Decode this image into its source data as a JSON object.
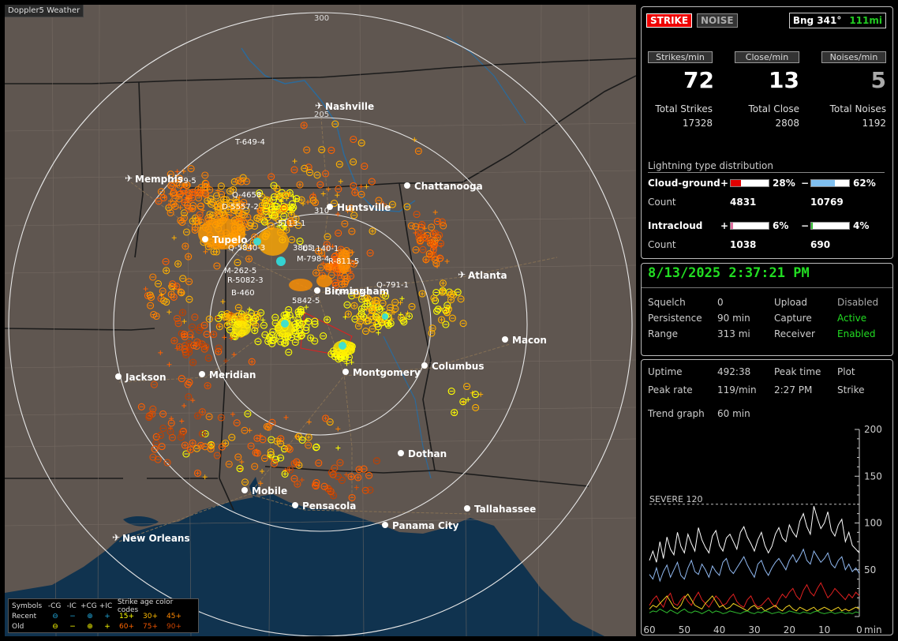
{
  "app": {
    "title": "Doppler5 Weather"
  },
  "map": {
    "range_labels": [
      "300",
      "205"
    ],
    "cities": [
      {
        "name": "Nashville"
      },
      {
        "name": "Memphis"
      },
      {
        "name": "Chattanooga"
      },
      {
        "name": "Huntsville"
      },
      {
        "name": "Tupelo"
      },
      {
        "name": "Atlanta"
      },
      {
        "name": "Birmingham"
      },
      {
        "name": "Macon"
      },
      {
        "name": "Jackson"
      },
      {
        "name": "Meridian"
      },
      {
        "name": "Montgomery"
      },
      {
        "name": "Columbus"
      },
      {
        "name": "Dothan"
      },
      {
        "name": "Mobile"
      },
      {
        "name": "Pensacola"
      },
      {
        "name": "Tallahassee"
      },
      {
        "name": "Panama City"
      },
      {
        "name": "New Orleans"
      }
    ],
    "storm_labels": [
      "T-649-4",
      "Q-4658",
      "D-5557-2",
      "79-5",
      "Q-5840-3",
      "M-262-5",
      "R-5082-3",
      "B-460",
      "M-798-4",
      "R-811-5",
      "U-1140-1",
      "Q-4305-1",
      "Q-791-1",
      "5842-5",
      "3865",
      "5113-1",
      "310"
    ]
  },
  "legend": {
    "header": [
      "Symbols",
      "-CG",
      "-IC",
      "+CG",
      "+IC",
      "Strike age color codes"
    ],
    "recent_label": "Recent",
    "old_label": "Old",
    "recent_ages": [
      "15+",
      "30+",
      "45+"
    ],
    "old_ages": [
      "60+",
      "75+",
      "90+"
    ],
    "age_colors": [
      "#ffff00",
      "#ffb000",
      "#ff8000",
      "#ff6000",
      "#e05000",
      "#c04000"
    ]
  },
  "status": {
    "strike_toggle": "STRIKE",
    "noise_toggle": "NOISE",
    "bearing": "Bng 341°",
    "distance": "111mi",
    "strikes_per_min_label": "Strikes/min",
    "close_per_min_label": "Close/min",
    "noises_per_min_label": "Noises/min",
    "strikes_per_min": "72",
    "close_per_min": "13",
    "noises_per_min": "5",
    "total_strikes_label": "Total Strikes",
    "total_close_label": "Total Close",
    "total_noises_label": "Total Noises",
    "total_strikes": "17328",
    "total_close": "2808",
    "total_noises": "1192"
  },
  "distribution": {
    "title": "Lightning type distribution",
    "cloud_ground": {
      "label": "Cloud-ground",
      "pos_pct": 28,
      "neg_pct": 62,
      "pos_pct_text": "28%",
      "neg_pct_text": "62%",
      "pos_count": "4831",
      "neg_count": "10769",
      "pos_color": "#e00000",
      "neg_color": "#80c0f0"
    },
    "intracloud": {
      "label": "Intracloud",
      "pos_pct": 6,
      "neg_pct": 4,
      "pos_pct_text": "6%",
      "neg_pct_text": "4%",
      "pos_count": "1038",
      "neg_count": "690",
      "pos_color": "#e070a0",
      "neg_color": "#30c030"
    },
    "count_label": "Count",
    "plus": "+",
    "minus": "−"
  },
  "settings": {
    "datetime": "8/13/2025 2:37:21 PM",
    "squelch_label": "Squelch",
    "squelch": "0",
    "persistence_label": "Persistence",
    "persistence": "90 min",
    "range_label": "Range",
    "range": "313 mi",
    "upload_label": "Upload",
    "upload": "Disabled",
    "capture_label": "Capture",
    "capture": "Active",
    "receiver_label": "Receiver",
    "receiver": "Enabled"
  },
  "stats": {
    "uptime_label": "Uptime",
    "uptime": "492:38",
    "peak_time_label": "Peak time",
    "peak_time": "2:27 PM",
    "plot_label": "Plot",
    "plot": "Strike",
    "peak_rate_label": "Peak rate",
    "peak_rate": "119/min",
    "trend_label": "Trend graph",
    "trend_window": "60 min"
  },
  "chart_data": {
    "type": "line",
    "x": [
      60,
      59,
      58,
      57,
      56,
      55,
      54,
      53,
      52,
      51,
      50,
      49,
      48,
      47,
      46,
      45,
      44,
      43,
      42,
      41,
      40,
      39,
      38,
      37,
      36,
      35,
      34,
      33,
      32,
      31,
      30,
      29,
      28,
      27,
      26,
      25,
      24,
      23,
      22,
      21,
      20,
      19,
      18,
      17,
      16,
      15,
      14,
      13,
      12,
      11,
      10,
      9,
      8,
      7,
      6,
      5,
      4,
      3,
      2,
      1,
      0
    ],
    "xlabel": "min",
    "xticks": [
      "60",
      "50",
      "40",
      "30",
      "20",
      "10",
      "0"
    ],
    "yticks": [
      "50",
      "100",
      "150",
      "200"
    ],
    "ylim": [
      0,
      200
    ],
    "xlim": [
      60,
      0
    ],
    "threshold": {
      "label": "SEVERE 120",
      "value": 120
    },
    "series": [
      {
        "color": "#ffffff",
        "values": [
          60,
          70,
          58,
          80,
          62,
          85,
          72,
          66,
          90,
          75,
          68,
          88,
          78,
          70,
          95,
          82,
          74,
          68,
          86,
          92,
          76,
          70,
          84,
          88,
          80,
          72,
          90,
          96,
          85,
          78,
          70,
          82,
          90,
          76,
          68,
          75,
          88,
          95,
          84,
          80,
          98,
          90,
          85,
          102,
          110,
          96,
          88,
          118,
          105,
          94,
          100,
          112,
          92,
          86,
          98,
          104,
          80,
          90,
          76,
          72,
          68
        ]
      },
      {
        "color": "#90b8f0",
        "values": [
          45,
          40,
          52,
          38,
          48,
          55,
          42,
          50,
          58,
          44,
          40,
          52,
          60,
          48,
          45,
          56,
          50,
          42,
          54,
          48,
          44,
          58,
          62,
          50,
          46,
          52,
          58,
          64,
          55,
          48,
          42,
          56,
          60,
          50,
          44,
          52,
          58,
          62,
          56,
          50,
          60,
          66,
          58,
          64,
          72,
          60,
          56,
          70,
          64,
          58,
          62,
          68,
          56,
          52,
          60,
          64,
          50,
          56,
          48,
          52,
          46
        ]
      },
      {
        "color": "#e02020",
        "values": [
          12,
          18,
          22,
          15,
          10,
          20,
          25,
          14,
          12,
          18,
          22,
          16,
          12,
          20,
          26,
          18,
          14,
          10,
          16,
          22,
          18,
          12,
          14,
          20,
          24,
          16,
          12,
          10,
          18,
          22,
          14,
          10,
          12,
          16,
          20,
          14,
          10,
          18,
          24,
          20,
          26,
          30,
          22,
          18,
          28,
          34,
          26,
          22,
          30,
          36,
          28,
          20,
          24,
          30,
          26,
          22,
          18,
          24,
          20,
          26,
          22
        ]
      },
      {
        "color": "#f0d020",
        "values": [
          8,
          12,
          10,
          14,
          18,
          22,
          16,
          10,
          8,
          12,
          20,
          24,
          18,
          12,
          10,
          8,
          14,
          18,
          22,
          16,
          10,
          12,
          8,
          10,
          14,
          12,
          10,
          8,
          6,
          10,
          12,
          8,
          10,
          6,
          8,
          10,
          12,
          8,
          6,
          10,
          12,
          8,
          6,
          10,
          8,
          6,
          8,
          10,
          6,
          8,
          10,
          8,
          6,
          8,
          10,
          6,
          8,
          6,
          8,
          10,
          8
        ]
      },
      {
        "color": "#30c030",
        "values": [
          4,
          6,
          5,
          8,
          6,
          4,
          7,
          5,
          3,
          6,
          8,
          5,
          4,
          6,
          5,
          3,
          5,
          7,
          4,
          6,
          5,
          3,
          4,
          6,
          5,
          4,
          3,
          5,
          6,
          4,
          3,
          5,
          4,
          6,
          5,
          3,
          4,
          5,
          3,
          4,
          6,
          5,
          4,
          3,
          5,
          4,
          3,
          5,
          6,
          4,
          3,
          4,
          5,
          3,
          4,
          5,
          3,
          4,
          3,
          5,
          4
        ]
      }
    ]
  }
}
